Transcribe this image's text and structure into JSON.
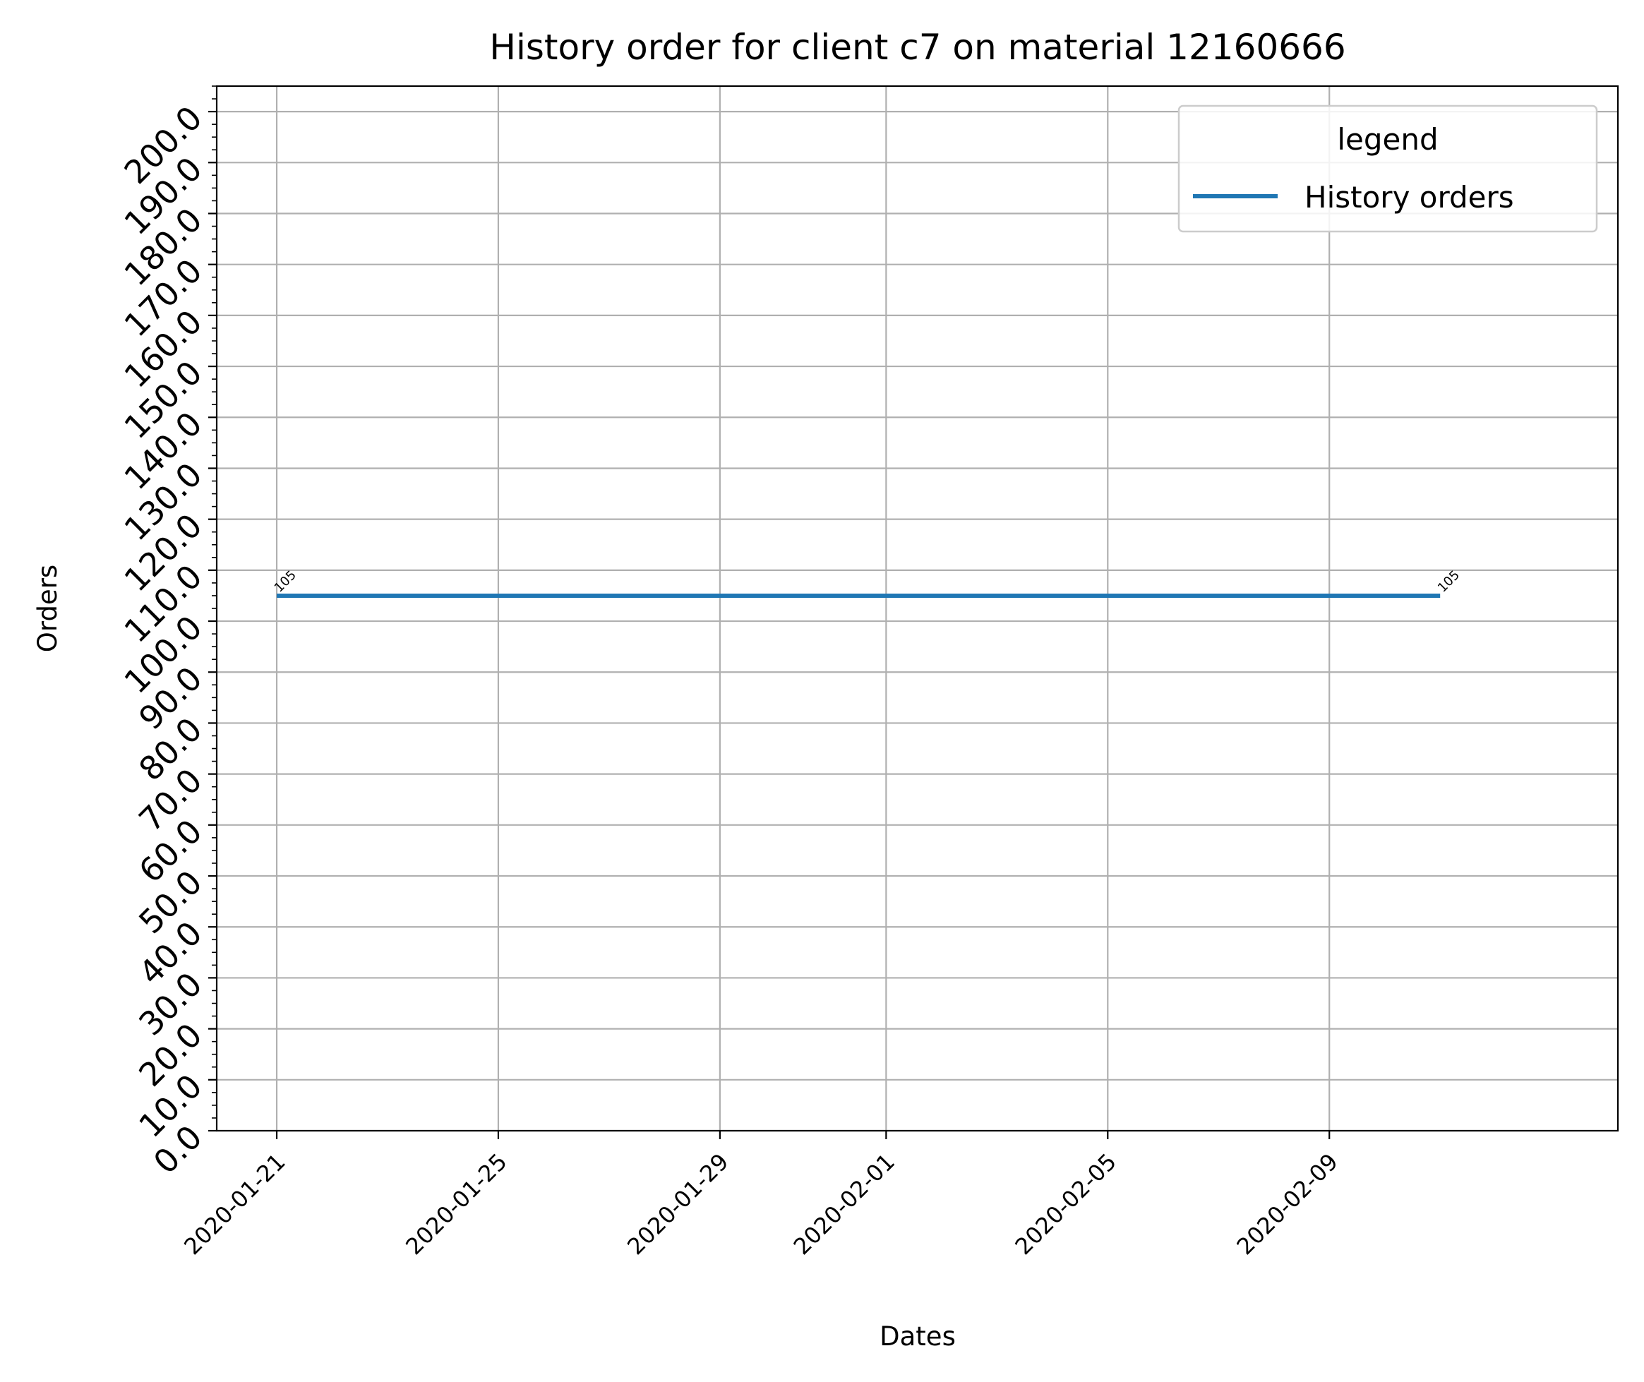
{
  "chart_data": {
    "type": "line",
    "title": "History order for client c7 on material 12160666",
    "xlabel": "Dates",
    "ylabel": "Orders",
    "x_tick_labels": [
      "2020-01-21",
      "2020-01-25",
      "2020-01-29",
      "2020-02-01",
      "2020-02-05",
      "2020-02-09"
    ],
    "y_tick_labels": [
      "0.0",
      "10.0",
      "20.0",
      "30.0",
      "40.0",
      "50.0",
      "60.0",
      "70.0",
      "80.0",
      "90.0",
      "100.0",
      "110.0",
      "120.0",
      "130.0",
      "140.0",
      "150.0",
      "160.0",
      "170.0",
      "180.0",
      "190.0",
      "200.0"
    ],
    "ylim": [
      0,
      205
    ],
    "xlim": [
      "2020-01-19 22:00",
      "2020-02-14 05:00"
    ],
    "grid": true,
    "legend": {
      "title": "legend",
      "placement": "top-right"
    },
    "series": [
      {
        "name": "History orders",
        "color": "#1f77b4",
        "x": [
          "2020-01-21",
          "2020-02-11"
        ],
        "y": [
          105,
          105
        ],
        "data_labels": [
          "105",
          "105"
        ]
      }
    ]
  }
}
